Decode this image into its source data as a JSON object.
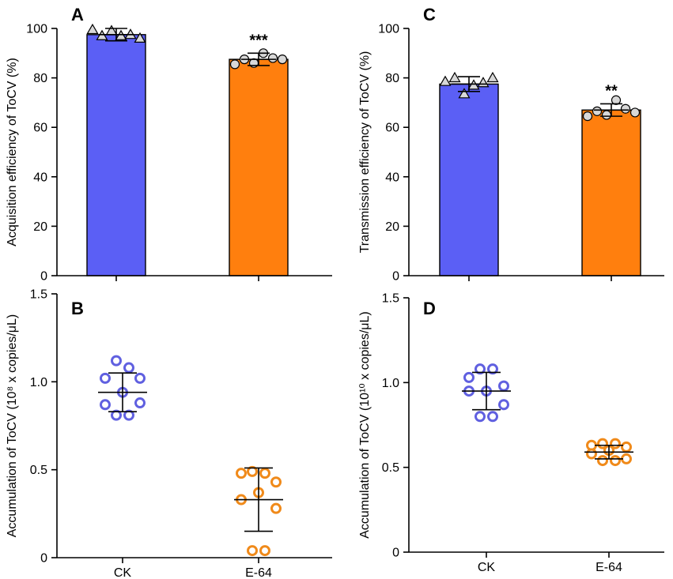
{
  "colors": {
    "ck": "#5b5ff5",
    "e64": "#ff7f0e",
    "marker_fill": "#d8d8d8",
    "ck_open": "#6060e0",
    "e64_open": "#f08a1a"
  },
  "chart_data": [
    {
      "id": "A",
      "type": "bar",
      "panel_label": "A",
      "ylabel": "Acquisition efficiency of ToCV (%)",
      "ylim": [
        0,
        100
      ],
      "yticks": [
        0,
        20,
        40,
        60,
        80,
        100
      ],
      "categories": [
        "CK",
        "E-64"
      ],
      "values": [
        97.5,
        87.5
      ],
      "sd": [
        2.5,
        2.5
      ],
      "markers": [
        "triangle",
        "circle"
      ],
      "points": [
        [
          99.5,
          97,
          99,
          97,
          97.5,
          96
        ],
        [
          85.5,
          87.5,
          86,
          90,
          88,
          87.5
        ]
      ],
      "significance": [
        "",
        "***"
      ]
    },
    {
      "id": "C",
      "type": "bar",
      "panel_label": "C",
      "ylabel": "Transmission efficiency of ToCV (%)",
      "ylim": [
        0,
        100
      ],
      "yticks": [
        0,
        20,
        40,
        60,
        80,
        100
      ],
      "categories": [
        "CK",
        "E-64"
      ],
      "values": [
        77.5,
        67
      ],
      "sd": [
        3,
        2.5
      ],
      "markers": [
        "triangle",
        "circle"
      ],
      "points": [
        [
          78.5,
          80,
          73.5,
          77,
          78,
          80
        ],
        [
          64.5,
          66.5,
          65,
          71,
          67.5,
          66
        ]
      ],
      "significance": [
        "",
        "**"
      ]
    },
    {
      "id": "B",
      "type": "scatter",
      "panel_label": "B",
      "ylabel": "Accumulation of ToCV (10⁸ x copies/μL)",
      "ylim": [
        0,
        1.5
      ],
      "yticks": [
        0,
        0.5,
        1.0,
        1.5
      ],
      "ytick_labels": [
        "0",
        "0.5",
        "1.0",
        "1.5"
      ],
      "categories": [
        "CK",
        "E-64"
      ],
      "means": [
        0.94,
        0.33
      ],
      "sd": [
        0.11,
        0.18
      ],
      "points": [
        [
          1.12,
          1.08,
          1.02,
          1.02,
          0.94,
          0.87,
          0.88,
          0.81,
          0.81
        ],
        [
          0.49,
          0.48,
          0.48,
          0.43,
          0.37,
          0.33,
          0.28,
          0.04,
          0.04
        ]
      ]
    },
    {
      "id": "D",
      "type": "scatter",
      "panel_label": "D",
      "ylabel": "Accumulation of ToCV (10¹⁰ x copies/μL)",
      "ylim": [
        0,
        1.5
      ],
      "yticks": [
        0,
        0.5,
        1.0,
        1.5
      ],
      "ytick_labels": [
        "0",
        "0.5",
        "1.0",
        "1.5"
      ],
      "categories": [
        "CK",
        "E-64"
      ],
      "means": [
        0.95,
        0.59
      ],
      "sd": [
        0.11,
        0.04
      ],
      "points": [
        [
          1.08,
          1.08,
          1.03,
          0.98,
          0.95,
          0.95,
          0.87,
          0.8,
          0.8
        ],
        [
          0.64,
          0.64,
          0.63,
          0.62,
          0.6,
          0.58,
          0.55,
          0.54,
          0.54
        ]
      ]
    }
  ]
}
